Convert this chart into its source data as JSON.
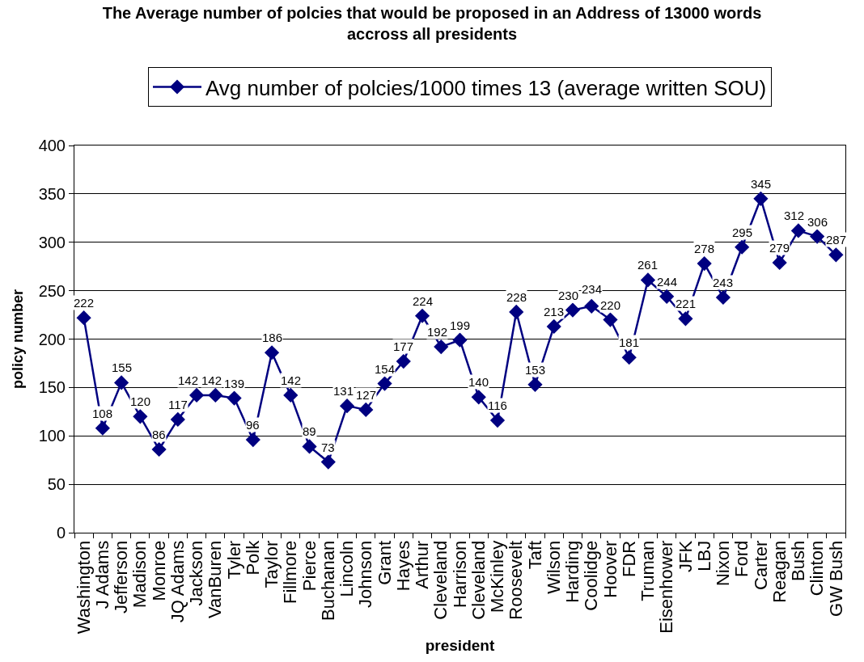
{
  "chart_data": {
    "type": "line",
    "title": "The Average number of polcies that would be proposed in an Address of 13000 words\naccross all presidents",
    "xlabel": "president",
    "ylabel": "policy number",
    "categories": [
      "Washington",
      "J Adams",
      "Jefferson",
      "Madison",
      "Monroe",
      "JQ Adams",
      "Jackson",
      "VanBuren",
      "Tyler",
      "Polk",
      "Taylor",
      "Fillmore",
      "Pierce",
      "Buchanan",
      "Lincoln",
      "Johnson",
      "Grant",
      "Hayes",
      "Arthur",
      "Cleveland",
      "Harrison",
      "Cleveland",
      "McKinley",
      "Roosevelt",
      "Taft",
      "Wilson",
      "Harding",
      "Coolidge",
      "Hoover",
      "FDR",
      "Truman",
      "Eisenhower",
      "JFK",
      "LBJ",
      "Nixon",
      "Ford",
      "Carter",
      "Reagan",
      "Bush",
      "Clinton",
      "GW Bush"
    ],
    "series": [
      {
        "name": "Avg number of polcies/1000 times 13 (average written SOU)",
        "color": "#000080",
        "values": [
          222,
          108,
          155,
          120,
          86,
          117,
          142,
          142,
          139,
          96,
          186,
          142,
          89,
          73,
          131,
          127,
          154,
          177,
          224,
          192,
          199,
          140,
          116,
          228,
          153,
          213,
          230,
          234,
          220,
          181,
          261,
          244,
          221,
          278,
          243,
          295,
          345,
          279,
          312,
          306,
          287
        ]
      }
    ],
    "ylim": [
      0,
      400
    ],
    "yticks": [
      0,
      50,
      100,
      150,
      200,
      250,
      300,
      350,
      400
    ],
    "grid": "y",
    "legend": "top",
    "marker": "diamond",
    "line_style": "solid",
    "data_labels": true
  }
}
